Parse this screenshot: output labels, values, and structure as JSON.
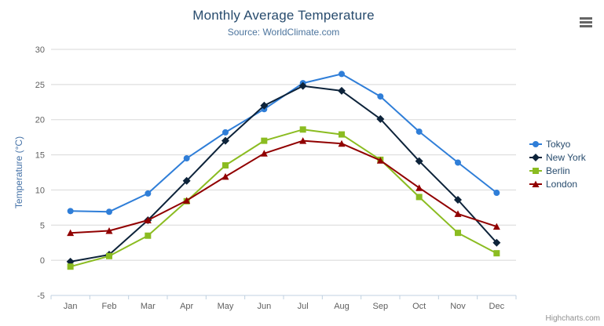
{
  "chart_data": {
    "type": "line",
    "title": "Monthly Average Temperature",
    "subtitle": "Source: WorldClimate.com",
    "xlabel": "",
    "ylabel": "Temperature (°C)",
    "categories": [
      "Jan",
      "Feb",
      "Mar",
      "Apr",
      "May",
      "Jun",
      "Jul",
      "Aug",
      "Sep",
      "Oct",
      "Nov",
      "Dec"
    ],
    "series": [
      {
        "name": "Tokyo",
        "marker": "circle",
        "color": "#2f7ed8",
        "values": [
          7.0,
          6.9,
          9.5,
          14.5,
          18.2,
          21.5,
          25.2,
          26.5,
          23.3,
          18.3,
          13.9,
          9.6
        ]
      },
      {
        "name": "New York",
        "marker": "diamond",
        "color": "#0d233a",
        "values": [
          -0.2,
          0.8,
          5.7,
          11.3,
          17.0,
          22.0,
          24.8,
          24.1,
          20.1,
          14.1,
          8.6,
          2.5
        ]
      },
      {
        "name": "Berlin",
        "marker": "square",
        "color": "#8bbc21",
        "values": [
          -0.9,
          0.6,
          3.5,
          8.4,
          13.5,
          17.0,
          18.6,
          17.9,
          14.3,
          9.0,
          3.9,
          1.0
        ]
      },
      {
        "name": "London",
        "marker": "triangle",
        "color": "#910000",
        "values": [
          3.9,
          4.2,
          5.7,
          8.5,
          11.9,
          15.2,
          17.0,
          16.6,
          14.2,
          10.3,
          6.6,
          4.8
        ]
      }
    ],
    "ylim": [
      -5,
      30
    ],
    "ytick_step": 5,
    "grid": true,
    "legend_position": "right",
    "credits": "Highcharts.com"
  },
  "style": {
    "grid_color": "#d8d8d8",
    "axis_line_color": "#c0d0e0",
    "tick_color": "#c0d0e0",
    "axis_label_color": "#606060",
    "title_color": "#274b6d",
    "subtitle_color": "#4d759e",
    "y_axis_title_color": "#4572a7",
    "legend_text_color": "#274b6d",
    "credits_color": "#909090",
    "export_icon_color": "#666666"
  },
  "icons": {
    "export_menu": "hamburger-icon"
  }
}
